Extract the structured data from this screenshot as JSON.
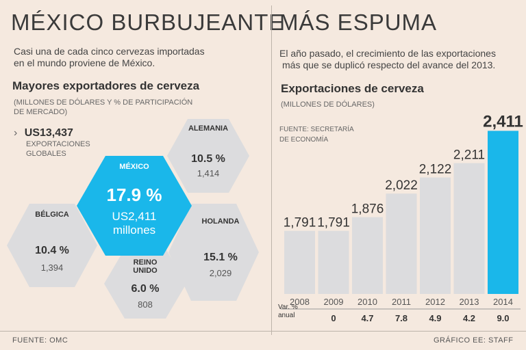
{
  "left": {
    "title": "MÉXICO BURBUJEANTE",
    "subtitle_line1": "Casi una de cada cinco cervezas importadas",
    "subtitle_line2": "en el mundo proviene de México.",
    "section_title": "Mayores exportadores de cerveza",
    "section_note_line1": "(MILLONES DE DÓLARES Y % DE PARTICIPACIÓN",
    "section_note_line2": "DE MERCADO)",
    "global_arrow": "›",
    "global_value": "US13,437",
    "global_label_line1": "EXPORTACIONES",
    "global_label_line2": "GLOBALES",
    "exporters": [
      {
        "name": "MÉXICO",
        "pct": "17.9 %",
        "value_line1": "US2,411",
        "value_line2": "millones"
      },
      {
        "name": "ALEMANIA",
        "pct": "10.5 %",
        "value": "1,414"
      },
      {
        "name": "BÉLGICA",
        "pct": "10.4 %",
        "value": "1,394"
      },
      {
        "name": "HOLANDA",
        "pct": "15.1 %",
        "value": "2,029"
      },
      {
        "name_line1": "REINO",
        "name_line2": "UNIDO",
        "pct": "6.0 %",
        "value": "808"
      }
    ],
    "source": "FUENTE: OMC"
  },
  "right": {
    "title": "MÁS ESPUMA",
    "subtitle_line1": "El año pasado, el crecimiento de las exportaciones",
    "subtitle_line2": "más que se duplicó respecto del avance del 2013.",
    "chart_source_line1": "FUENTE: SECRETARÍA",
    "chart_source_line2": "DE ECONOMÍA",
    "var_label_line1": "Var. %",
    "var_label_line2": "anual",
    "credit": "GRÁFICO EE: STAFF"
  },
  "colors": {
    "background": "#f5e9df",
    "bar": "#dcdcde",
    "highlight": "#1ab7ea",
    "text": "#333333"
  },
  "chart_data": {
    "type": "bar",
    "title": "Exportaciones de cerveza",
    "subtitle": "(MILLONES DE DÓLARES)",
    "categories": [
      "2008",
      "2009",
      "2010",
      "2011",
      "2012",
      "2013",
      "2014"
    ],
    "values": [
      1791,
      1791,
      1876,
      2022,
      2122,
      2211,
      2411
    ],
    "value_labels": [
      "1,791",
      "1,791",
      "1,876",
      "2,022",
      "2,122",
      "2,211",
      "2,411"
    ],
    "annual_change": [
      "",
      "0",
      "4.7",
      "7.8",
      "4.9",
      "4.2",
      "9.0"
    ],
    "highlight_category": "2014"
  }
}
